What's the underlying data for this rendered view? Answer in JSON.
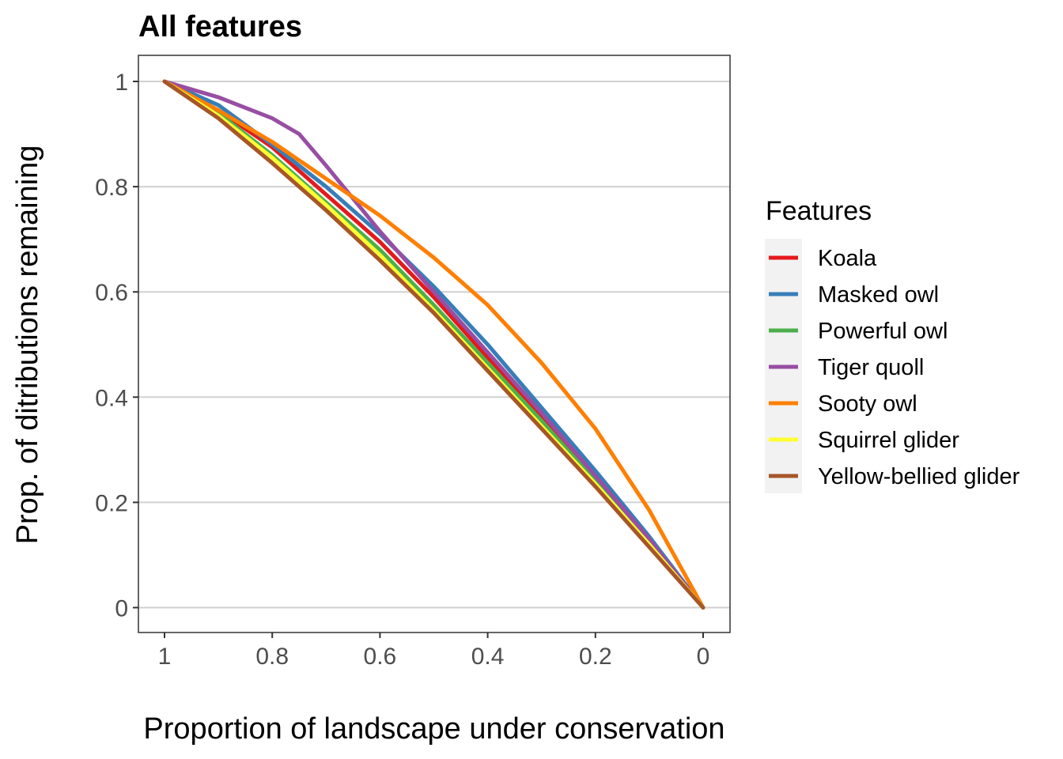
{
  "chart_data": {
    "type": "line",
    "title": "All features",
    "xlabel": "Proportion of landscape under conservation",
    "ylabel": "Prop. of ditributions remaining",
    "xlim": [
      1,
      0
    ],
    "ylim": [
      -0.04,
      1.05
    ],
    "x_reversed": true,
    "xticks": [
      1,
      0.8,
      0.6,
      0.4,
      0.2,
      0
    ],
    "xtick_labels": [
      "1",
      "0.8",
      "0.6",
      "0.4",
      "0.2",
      "0"
    ],
    "yticks": [
      0,
      0.2,
      0.4,
      0.6,
      0.8,
      1
    ],
    "ytick_labels": [
      "0",
      "0.2",
      "0.4",
      "0.6",
      "0.8",
      "1"
    ],
    "grid": "horizontal major",
    "legend": {
      "title": "Features",
      "position": "right"
    },
    "series": [
      {
        "name": "Koala",
        "color": "#e41a1c",
        "x": [
          1,
          0.9,
          0.8,
          0.7,
          0.6,
          0.5,
          0.4,
          0.3,
          0.2,
          0.1,
          0
        ],
        "y": [
          1,
          0.945,
          0.875,
          0.785,
          0.695,
          0.59,
          0.475,
          0.36,
          0.245,
          0.125,
          0
        ]
      },
      {
        "name": "Masked owl",
        "color": "#377eb8",
        "x": [
          1,
          0.9,
          0.8,
          0.7,
          0.6,
          0.5,
          0.4,
          0.3,
          0.2,
          0.1,
          0
        ],
        "y": [
          1,
          0.955,
          0.88,
          0.8,
          0.71,
          0.61,
          0.5,
          0.38,
          0.26,
          0.135,
          0
        ]
      },
      {
        "name": "Powerful owl",
        "color": "#4daf4a",
        "x": [
          1,
          0.9,
          0.8,
          0.7,
          0.6,
          0.5,
          0.4,
          0.3,
          0.2,
          0.1,
          0
        ],
        "y": [
          1,
          0.94,
          0.86,
          0.77,
          0.68,
          0.575,
          0.465,
          0.355,
          0.24,
          0.12,
          0
        ]
      },
      {
        "name": "Tiger quoll",
        "color": "#984ea3",
        "x": [
          1,
          0.9,
          0.8,
          0.75,
          0.7,
          0.6,
          0.5,
          0.4,
          0.3,
          0.2,
          0.1,
          0
        ],
        "y": [
          1,
          0.97,
          0.93,
          0.9,
          0.84,
          0.715,
          0.6,
          0.485,
          0.37,
          0.25,
          0.13,
          0
        ]
      },
      {
        "name": "Sooty owl",
        "color": "#ff7f00",
        "x": [
          1,
          0.9,
          0.8,
          0.7,
          0.6,
          0.5,
          0.4,
          0.3,
          0.2,
          0.1,
          0
        ],
        "y": [
          1,
          0.945,
          0.885,
          0.815,
          0.745,
          0.665,
          0.575,
          0.465,
          0.34,
          0.185,
          0
        ]
      },
      {
        "name": "Squirrel glider",
        "color": "#ffff33",
        "x": [
          1,
          0.9,
          0.8,
          0.7,
          0.6,
          0.5,
          0.4,
          0.3,
          0.2,
          0.1,
          0
        ],
        "y": [
          1,
          0.935,
          0.855,
          0.765,
          0.67,
          0.565,
          0.455,
          0.345,
          0.235,
          0.12,
          0
        ]
      },
      {
        "name": "Yellow-bellied glider",
        "color": "#a65628",
        "x": [
          1,
          0.9,
          0.8,
          0.7,
          0.6,
          0.5,
          0.4,
          0.3,
          0.2,
          0.1,
          0
        ],
        "y": [
          1,
          0.93,
          0.845,
          0.755,
          0.66,
          0.56,
          0.45,
          0.34,
          0.23,
          0.115,
          0
        ]
      }
    ]
  }
}
